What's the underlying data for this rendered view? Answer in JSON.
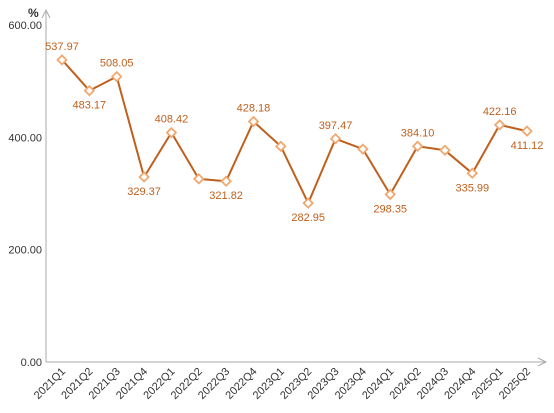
{
  "chart_data": {
    "type": "line",
    "unit_label": "%",
    "categories": [
      "2021Q1",
      "2021Q2",
      "2021Q3",
      "2021Q4",
      "2022Q1",
      "2022Q2",
      "2022Q3",
      "2022Q4",
      "2023Q1",
      "2023Q2",
      "2023Q3",
      "2023Q4",
      "2024Q1",
      "2024Q2",
      "2024Q3",
      "2024Q4",
      "2025Q1",
      "2025Q2"
    ],
    "values": [
      537.97,
      483.17,
      508.05,
      329.37,
      408.42,
      326.0,
      321.82,
      428.18,
      384.0,
      282.95,
      397.47,
      379.0,
      298.35,
      384.1,
      377.0,
      335.99,
      422.16,
      411.12
    ],
    "labels": [
      "537.97",
      "483.17",
      "508.05",
      "329.37",
      "408.42",
      "",
      "321.82",
      "428.18",
      "",
      "282.95",
      "397.47",
      "",
      "298.35",
      "384.10",
      "",
      "335.99",
      "422.16",
      "411.12"
    ],
    "label_position": [
      "above",
      "below",
      "above",
      "below",
      "above",
      "",
      "below",
      "above",
      "",
      "below",
      "above",
      "",
      "below",
      "above",
      "",
      "below",
      "above",
      "below"
    ],
    "y_ticks": [
      "0.00",
      "200.00",
      "400.00",
      "600.00"
    ],
    "y_tick_values": [
      0,
      200,
      400,
      600
    ],
    "ylim": [
      0,
      600
    ],
    "grid": false,
    "legend": "none",
    "line_color": "#c0601e",
    "marker_color": "#f0a870",
    "label_color": "#c0601e",
    "axis_color": "#aaaaaa"
  }
}
